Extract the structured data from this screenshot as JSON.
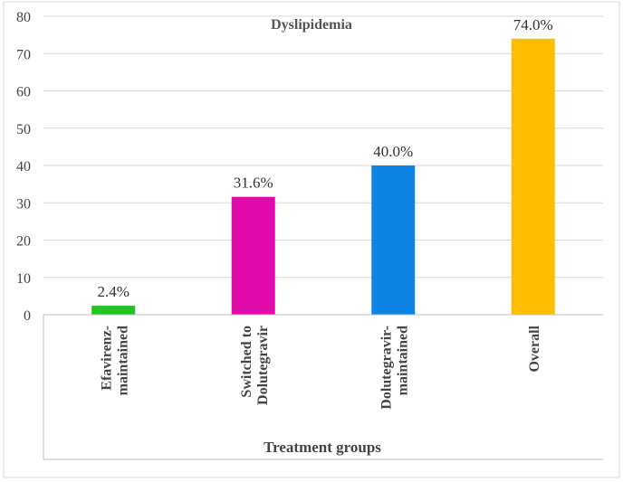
{
  "chart_data": {
    "type": "bar",
    "title": "Dyslipidemia",
    "xlabel": "Treatment groups",
    "ylabel": "",
    "ylim": [
      0,
      80
    ],
    "yticks": [
      0,
      10,
      20,
      30,
      40,
      50,
      60,
      70,
      80
    ],
    "grid": true,
    "categories": [
      [
        "Efavirenz-",
        "maintained"
      ],
      [
        "Switched to",
        "Dolutegravir"
      ],
      [
        "Dolutegravir-",
        "maintained"
      ],
      [
        "Overall"
      ]
    ],
    "values": [
      2.4,
      31.6,
      40.0,
      74.0
    ],
    "data_labels": [
      "2.4%",
      "31.6%",
      "40.0%",
      "74.0%"
    ],
    "colors": [
      "#22c322",
      "#e00baa",
      "#0d84e3",
      "#ffbf00"
    ],
    "gridline_color": "#d9d9d9",
    "axis_color": "#bfbfbf"
  }
}
